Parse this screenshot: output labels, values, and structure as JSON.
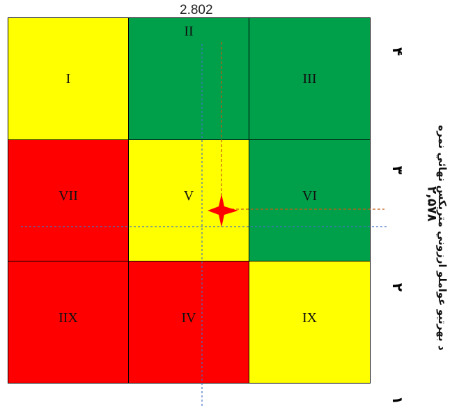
{
  "grid": {
    "cells": [
      {
        "id": "I",
        "label": "I",
        "color": "#ffff00"
      },
      {
        "id": "II",
        "label": "II",
        "color": "#00a04b"
      },
      {
        "id": "III",
        "label": "III",
        "color": "#00a04b"
      },
      {
        "id": "VII",
        "label": "VII",
        "color": "#ff0000"
      },
      {
        "id": "V",
        "label": "V",
        "color": "#ffff00"
      },
      {
        "id": "VI",
        "label": "VI",
        "color": "#00a04b"
      },
      {
        "id": "IIX",
        "label": "IIX",
        "color": "#ff0000"
      },
      {
        "id": "IV",
        "label": "IV",
        "color": "#ff0000"
      },
      {
        "id": "IX",
        "label": "IX",
        "color": "#ffff00"
      }
    ]
  },
  "top_value": "2.802",
  "right_ticks": [
    "۴",
    "۳",
    "۲",
    "۱"
  ],
  "right_value": "۲,۵۷۸",
  "right_axis_title": "د بهرتيو عواملو ارزوني متريکس نهائي نمره",
  "marker": {
    "shape": "four-point-star",
    "color": "#ff0000"
  },
  "guide_line_colors": {
    "blue": "#4472c4",
    "orange": "#c55a11"
  }
}
